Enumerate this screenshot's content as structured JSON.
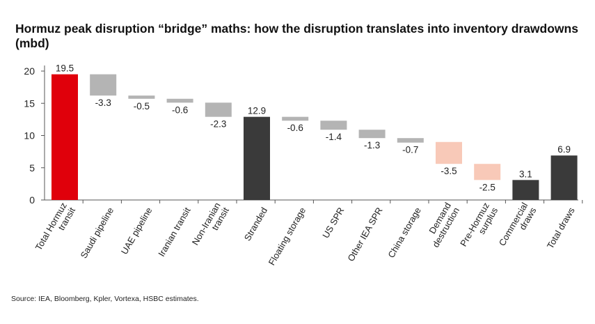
{
  "title": "Hormuz peak disruption “bridge” maths: how the disruption translates into inventory drawdowns (mbd)",
  "source": "Source: IEA, Bloomberg, Kpler, Vortexa, HSBC estimates.",
  "colors": {
    "total_red": "#e0000b",
    "subtotal_dark": "#3a3a3a",
    "supply_step": "#b4b4b4",
    "demand_step": "#f8c9b8"
  },
  "chart_data": {
    "type": "bar",
    "subtype": "waterfall",
    "ylim": [
      0,
      20
    ],
    "yticks": [
      0,
      5,
      10,
      15,
      20
    ],
    "grid": false,
    "legend": "none",
    "categories": [
      [
        "Total Hormuz",
        "transit"
      ],
      [
        "Saudi pipeline"
      ],
      [
        "UAE pipeline"
      ],
      [
        "Iranian transit"
      ],
      [
        "Non-Iranian",
        "transit"
      ],
      [
        "Stranded"
      ],
      [
        "Floating storage"
      ],
      [
        "US SPR"
      ],
      [
        "Other IEA SPR"
      ],
      [
        "China storage"
      ],
      [
        "Demand",
        "destruction"
      ],
      [
        "Pre-Hormuz",
        "surplus"
      ],
      [
        "Commercial",
        "draws"
      ],
      [
        "Total draws"
      ]
    ],
    "bars": [
      {
        "kind": "total",
        "start": 0,
        "end": 19.5,
        "label": "19.5",
        "color": "#e0000b"
      },
      {
        "kind": "step",
        "start": 19.5,
        "end": 16.2,
        "label": "-3.3",
        "color": "#b4b4b4"
      },
      {
        "kind": "step",
        "start": 16.2,
        "end": 15.7,
        "label": "-0.5",
        "color": "#b4b4b4"
      },
      {
        "kind": "step",
        "start": 15.7,
        "end": 15.1,
        "label": "-0.6",
        "color": "#b4b4b4"
      },
      {
        "kind": "step",
        "start": 15.1,
        "end": 12.9,
        "label": "-2.3",
        "color": "#b4b4b4"
      },
      {
        "kind": "subtotal",
        "start": 0,
        "end": 12.9,
        "label": "12.9",
        "color": "#3a3a3a"
      },
      {
        "kind": "step",
        "start": 12.9,
        "end": 12.3,
        "label": "-0.6",
        "color": "#b4b4b4"
      },
      {
        "kind": "step",
        "start": 12.3,
        "end": 10.9,
        "label": "-1.4",
        "color": "#b4b4b4"
      },
      {
        "kind": "step",
        "start": 10.9,
        "end": 9.6,
        "label": "-1.3",
        "color": "#b4b4b4"
      },
      {
        "kind": "step",
        "start": 9.6,
        "end": 8.9,
        "label": "-0.7",
        "color": "#b4b4b4"
      },
      {
        "kind": "step",
        "start": 9.0,
        "end": 5.6,
        "label": "-3.5",
        "color": "#f8c9b8"
      },
      {
        "kind": "step",
        "start": 5.6,
        "end": 3.1,
        "label": "-2.5",
        "color": "#f8c9b8"
      },
      {
        "kind": "subtotal",
        "start": 0,
        "end": 3.1,
        "label": "3.1",
        "color": "#3a3a3a"
      },
      {
        "kind": "total",
        "start": 0,
        "end": 6.9,
        "label": "6.9",
        "color": "#3a3a3a"
      }
    ]
  }
}
